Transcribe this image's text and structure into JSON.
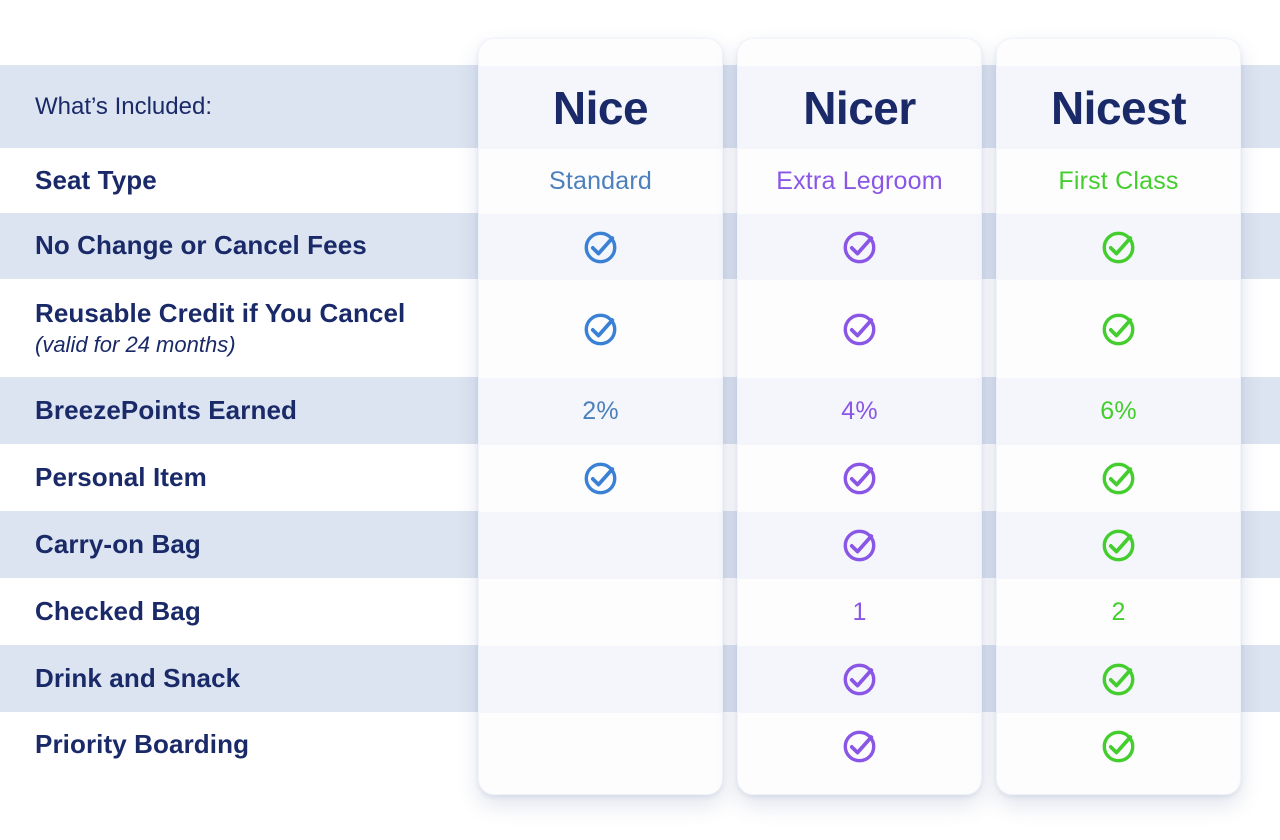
{
  "table": {
    "corner_label": "What’s Included:",
    "tiers": [
      {
        "name": "Nice",
        "accent": "#3a81d6",
        "value_color": "#4c80bd"
      },
      {
        "name": "Nicer",
        "accent": "#8a56e6",
        "value_color": "#8a56e6"
      },
      {
        "name": "Nicest",
        "accent": "#44ce2e",
        "value_color": "#44ce2e"
      }
    ],
    "rows": [
      {
        "label": "Seat Type",
        "cells": [
          "Standard",
          "Extra Legroom",
          "First Class"
        ]
      },
      {
        "label": "No Change or Cancel Fees",
        "cells": [
          "check",
          "check",
          "check"
        ]
      },
      {
        "label": "Reusable Credit if You Cancel",
        "sublabel": "(valid for 24 months)",
        "cells": [
          "check",
          "check",
          "check"
        ]
      },
      {
        "label": "BreezePoints Earned",
        "cells": [
          "2%",
          "4%",
          "6%"
        ]
      },
      {
        "label": "Personal Item",
        "cells": [
          "check",
          "check",
          "check"
        ]
      },
      {
        "label": "Carry-on Bag",
        "cells": [
          null,
          "check",
          "check"
        ]
      },
      {
        "label": "Checked Bag",
        "cells": [
          null,
          "1",
          "2"
        ]
      },
      {
        "label": "Drink and Snack",
        "cells": [
          null,
          "check",
          "check"
        ]
      },
      {
        "label": "Priority Boarding",
        "cells": [
          null,
          "check",
          "check"
        ]
      }
    ]
  },
  "colors": {
    "navy": "#1a2a68",
    "stripe": "#dce4f1",
    "stripe_soft": "#f4f6fb",
    "card_bg": "#fdfdfe"
  }
}
